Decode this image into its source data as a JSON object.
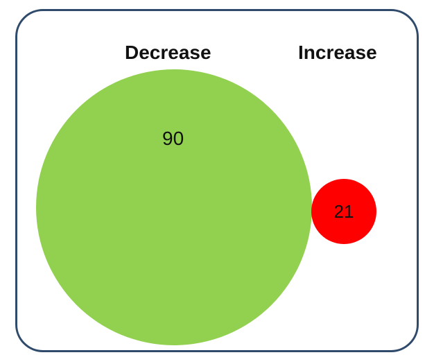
{
  "venn": {
    "sets": [
      {
        "label": "Decrease",
        "count": "90",
        "color": "#92d050"
      },
      {
        "label": "Increase",
        "count": "21",
        "color": "#ff0000"
      }
    ],
    "border_color": "#2f4a6b"
  }
}
